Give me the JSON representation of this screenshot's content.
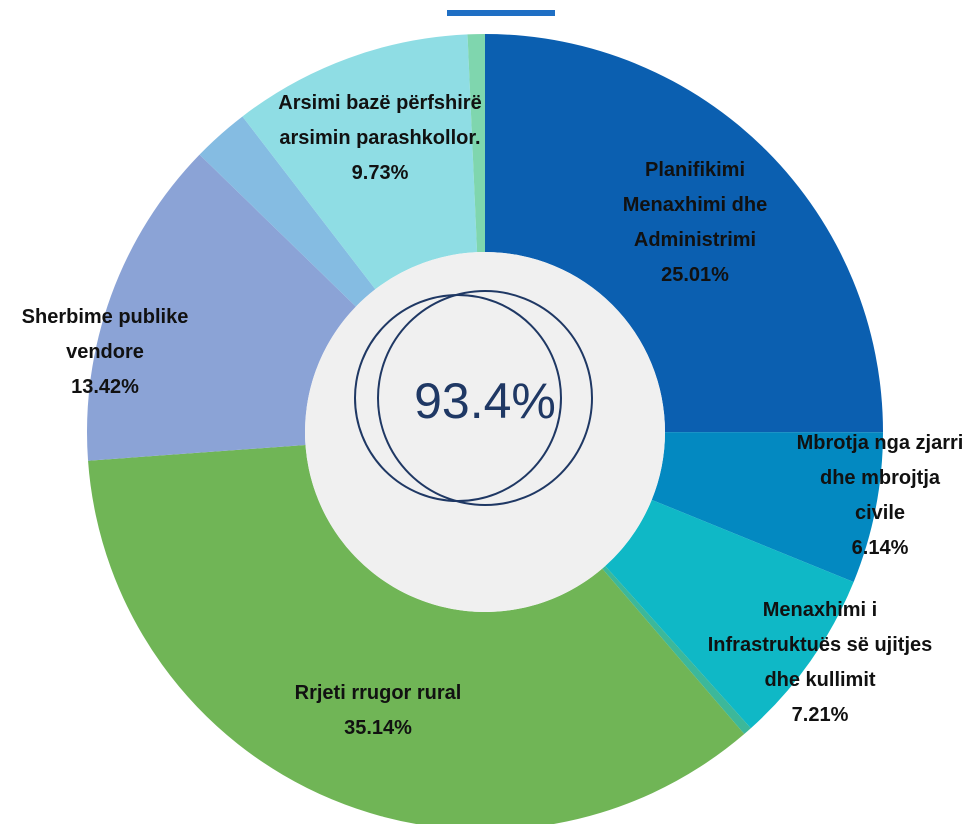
{
  "chart_data": {
    "type": "pie",
    "donut": true,
    "categories": [
      "Planifikimi Menaxhimi dhe Administrimi",
      "Mbrotja nga zjarri dhe mbrojtja civile",
      "Menaxhimi i Infrastruktuës së ujitjes dhe kullimit",
      null,
      "Rrjeti rrugor rural",
      "Sherbime publike vendore",
      null,
      "Arsimi bazë përfshirë arsimin parashkollor.",
      null
    ],
    "values": [
      25.01,
      6.14,
      7.21,
      0.35,
      35.14,
      13.42,
      2.3,
      9.73,
      0.7
    ],
    "value_labels": [
      "25.01%",
      "6.14%",
      "7.21%",
      null,
      "35.14%",
      "13.42%",
      null,
      "9.73%",
      null
    ],
    "colors": [
      "#0b5fb0",
      "#0389c1",
      "#0fb8c6",
      "#3cb89a",
      "#70b556",
      "#8ba3d6",
      "#85bce2",
      "#8fdde4",
      "#7fd6ae"
    ],
    "center_label": "93.4%"
  }
}
